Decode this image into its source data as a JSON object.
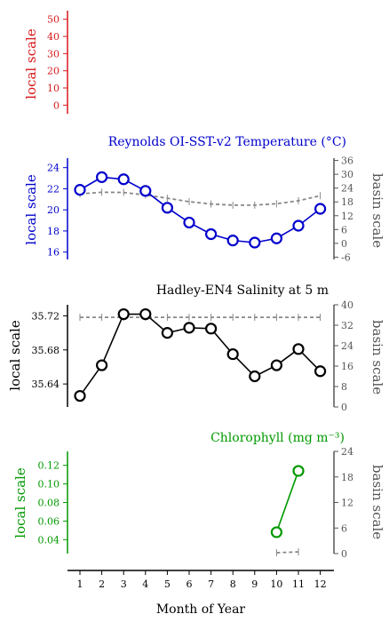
{
  "xaxis": {
    "label": "Month of Year",
    "ticks": [
      "1",
      "2",
      "3",
      "4",
      "5",
      "6",
      "7",
      "8",
      "9",
      "10",
      "11",
      "12"
    ]
  },
  "chart_data": [
    {
      "type": "line",
      "title": "",
      "ylabel_left": "local scale",
      "ylabel_right": "",
      "color": "#d7191c",
      "ylim_left": [
        -5,
        55
      ],
      "yticks_left": [
        "0",
        "10",
        "20",
        "30",
        "40",
        "50"
      ],
      "series": []
    },
    {
      "type": "line",
      "title": "Reynolds OI-SST-v2 Temperature (°C)",
      "ylabel_left": "local scale",
      "ylabel_right": "basin scale",
      "color": "#0000cc",
      "ylim_left": [
        15.3,
        24.9
      ],
      "yticks_left": [
        "16",
        "18",
        "20",
        "22",
        "24"
      ],
      "ylim_right": [
        -7,
        37
      ],
      "yticks_right": [
        "-6",
        "0",
        "6",
        "12",
        "18",
        "24",
        "30",
        "36"
      ],
      "local": {
        "x": [
          1,
          2,
          3,
          4,
          5,
          6,
          7,
          8,
          9,
          10,
          11,
          12
        ],
        "y": [
          21.9,
          23.1,
          22.9,
          21.8,
          20.2,
          18.8,
          17.7,
          17.1,
          16.9,
          17.3,
          18.5,
          20.1
        ]
      },
      "basin": {
        "x": [
          1,
          2,
          3,
          4,
          5,
          6,
          7,
          8,
          9,
          10,
          11,
          12
        ],
        "y": [
          21.5,
          22.2,
          22.1,
          21.0,
          19.6,
          18.1,
          17.1,
          16.6,
          16.6,
          17.2,
          18.5,
          20.7
        ]
      }
    },
    {
      "type": "line",
      "title": "Hadley-EN4 Salinity at 5 m",
      "ylabel_left": "local scale",
      "ylabel_right": "basin scale",
      "color": "#000000",
      "ylim_left": [
        35.613,
        35.733
      ],
      "yticks_left": [
        "35.64",
        "35.68",
        "35.72"
      ],
      "ylim_right": [
        0,
        40
      ],
      "yticks_right": [
        "0",
        "8",
        "16",
        "24",
        "32",
        "40"
      ],
      "local": {
        "x": [
          1,
          2,
          3,
          4,
          5,
          6,
          7,
          8,
          9,
          10,
          11,
          12
        ],
        "y": [
          35.626,
          35.662,
          35.722,
          35.722,
          35.7,
          35.706,
          35.705,
          35.675,
          35.649,
          35.662,
          35.681,
          35.655
        ]
      },
      "basin": {
        "x": [
          1,
          2,
          3,
          4,
          5,
          6,
          7,
          8,
          9,
          10,
          11,
          12
        ],
        "y": [
          35.1,
          35.1,
          35.1,
          35.1,
          35.1,
          35.1,
          35.1,
          35.1,
          35.1,
          35.1,
          35.1,
          35.1
        ]
      }
    },
    {
      "type": "line",
      "title": "Chlorophyll (mg m⁻³)",
      "ylabel_left": "local scale",
      "ylabel_right": "basin scale",
      "color": "#009900",
      "ylim_left": [
        0.025,
        0.135
      ],
      "yticks_left": [
        "0.04",
        "0.06",
        "0.08",
        "0.10",
        "0.12"
      ],
      "ylim_right": [
        0,
        24
      ],
      "yticks_right": [
        "0",
        "6",
        "12",
        "18",
        "24"
      ],
      "local": {
        "x": [
          10,
          11
        ],
        "y": [
          0.048,
          0.114
        ]
      },
      "basin": {
        "x": [
          10,
          11
        ],
        "y": [
          0.2,
          0.4
        ]
      }
    }
  ]
}
